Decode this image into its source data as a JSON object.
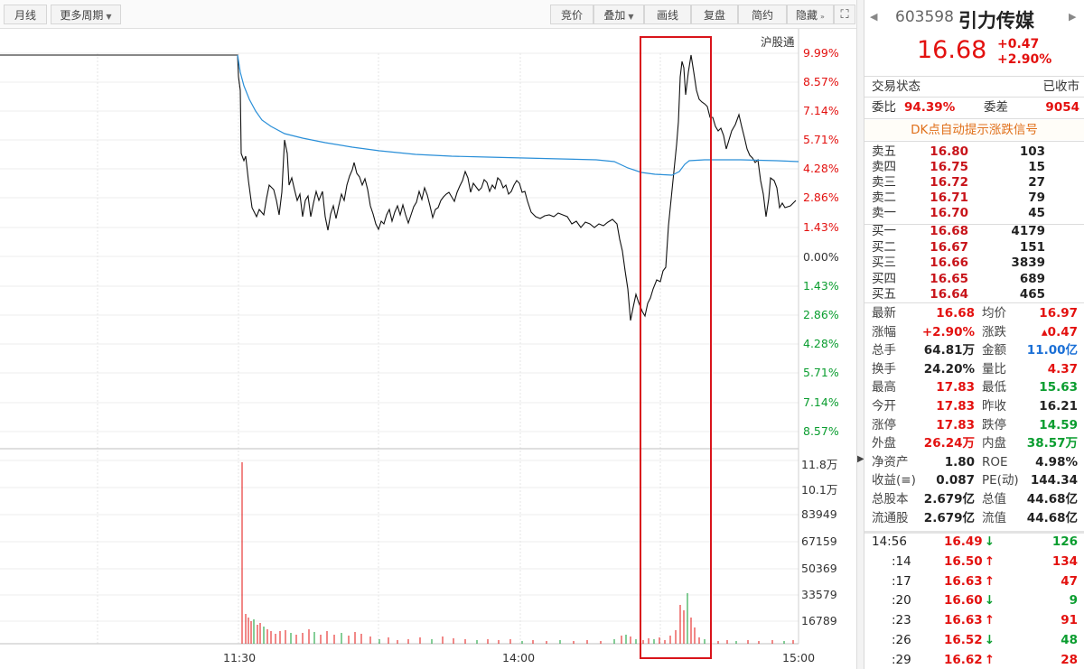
{
  "toolbar": {
    "month_label": "月线",
    "more_periods_label": "更多周期",
    "bid_label": "竞价",
    "overlay_label": "叠加",
    "draw_label": "画线",
    "restore_label": "复盘",
    "simple_label": "简约",
    "hide_label": "隐藏"
  },
  "chart": {
    "hugutong_label": "沪股通",
    "pct_labels_up": [
      "9.99%",
      "8.57%",
      "7.14%",
      "5.71%",
      "4.28%",
      "2.86%",
      "1.43%"
    ],
    "zero_label": "0.00%",
    "pct_labels_down": [
      "1.43%",
      "2.86%",
      "4.28%",
      "5.71%",
      "7.14%",
      "8.57%"
    ],
    "vol_labels": [
      "11.8万",
      "10.1万",
      "83949",
      "67159",
      "50369",
      "33579",
      "16789"
    ],
    "time_labels": [
      "11:30",
      "14:00",
      "15:00"
    ],
    "colors": {
      "price_line": "#111111",
      "avg_line": "#2a8fd8",
      "highlight_box": "#d9141b",
      "up": "#e3110f",
      "down": "#0a9d2f"
    }
  },
  "header": {
    "code": "603598",
    "name": "引力传媒",
    "price": "16.68",
    "change": "+0.47",
    "change_pct": "+2.90%"
  },
  "status": {
    "label": "交易状态",
    "value": "已收市",
    "ratio_label": "委比",
    "ratio_value": "94.39%",
    "diff_label": "委差",
    "diff_value": "9054",
    "dk_banner": "DK点自动提示涨跌信号"
  },
  "asks": [
    {
      "label": "卖五",
      "price": "16.80",
      "vol": "103"
    },
    {
      "label": "卖四",
      "price": "16.75",
      "vol": "15"
    },
    {
      "label": "卖三",
      "price": "16.72",
      "vol": "27"
    },
    {
      "label": "卖二",
      "price": "16.71",
      "vol": "79"
    },
    {
      "label": "卖一",
      "price": "16.70",
      "vol": "45"
    }
  ],
  "bids": [
    {
      "label": "买一",
      "price": "16.68",
      "vol": "4179"
    },
    {
      "label": "买二",
      "price": "16.67",
      "vol": "151"
    },
    {
      "label": "买三",
      "price": "16.66",
      "vol": "3839"
    },
    {
      "label": "买四",
      "price": "16.65",
      "vol": "689"
    },
    {
      "label": "买五",
      "price": "16.64",
      "vol": "465"
    }
  ],
  "stats": [
    {
      "l1": "最新",
      "v1": "16.68",
      "c1": "red",
      "l2": "均价",
      "v2": "16.97",
      "c2": "red"
    },
    {
      "l1": "涨幅",
      "v1": "+2.90%",
      "c1": "red",
      "l2": "涨跌",
      "v2": "▴0.47",
      "c2": "red"
    },
    {
      "l1": "总手",
      "v1": "64.81万",
      "c1": "dark",
      "l2": "金额",
      "v2": "11.00亿",
      "c2": "blue"
    },
    {
      "l1": "换手",
      "v1": "24.20%",
      "c1": "dark",
      "l2": "量比",
      "v2": "4.37",
      "c2": "red"
    },
    {
      "l1": "最高",
      "v1": "17.83",
      "c1": "red",
      "l2": "最低",
      "v2": "15.63",
      "c2": "green"
    },
    {
      "l1": "今开",
      "v1": "17.83",
      "c1": "red",
      "l2": "昨收",
      "v2": "16.21",
      "c2": "dark"
    },
    {
      "l1": "涨停",
      "v1": "17.83",
      "c1": "red",
      "l2": "跌停",
      "v2": "14.59",
      "c2": "green"
    },
    {
      "l1": "外盘",
      "v1": "26.24万",
      "c1": "red",
      "l2": "内盘",
      "v2": "38.57万",
      "c2": "green"
    },
    {
      "l1": "净资产",
      "v1": "1.80",
      "c1": "dark",
      "l2": "ROE",
      "v2": "4.98%",
      "c2": "dark"
    },
    {
      "l1": "收益(≡)",
      "v1": "0.087",
      "c1": "dark",
      "l2": "PE(动)",
      "v2": "144.34",
      "c2": "dark"
    },
    {
      "l1": "总股本",
      "v1": "2.679亿",
      "c1": "dark",
      "l2": "总值",
      "v2": "44.68亿",
      "c2": "dark"
    },
    {
      "l1": "流通股",
      "v1": "2.679亿",
      "c1": "dark",
      "l2": "流值",
      "v2": "44.68亿",
      "c2": "dark"
    }
  ],
  "trades": [
    {
      "time": "14:56",
      "price": "16.49",
      "dir": "down",
      "vol": "126"
    },
    {
      "time": ":14",
      "price": "16.50",
      "dir": "up",
      "vol": "134"
    },
    {
      "time": ":17",
      "price": "16.63",
      "dir": "up",
      "vol": "47"
    },
    {
      "time": ":20",
      "price": "16.60",
      "dir": "down",
      "vol": "9"
    },
    {
      "time": ":23",
      "price": "16.63",
      "dir": "up",
      "vol": "91"
    },
    {
      "time": ":26",
      "price": "16.52",
      "dir": "down",
      "vol": "48"
    },
    {
      "time": ":29",
      "price": "16.62",
      "dir": "up",
      "vol": "28"
    }
  ]
}
